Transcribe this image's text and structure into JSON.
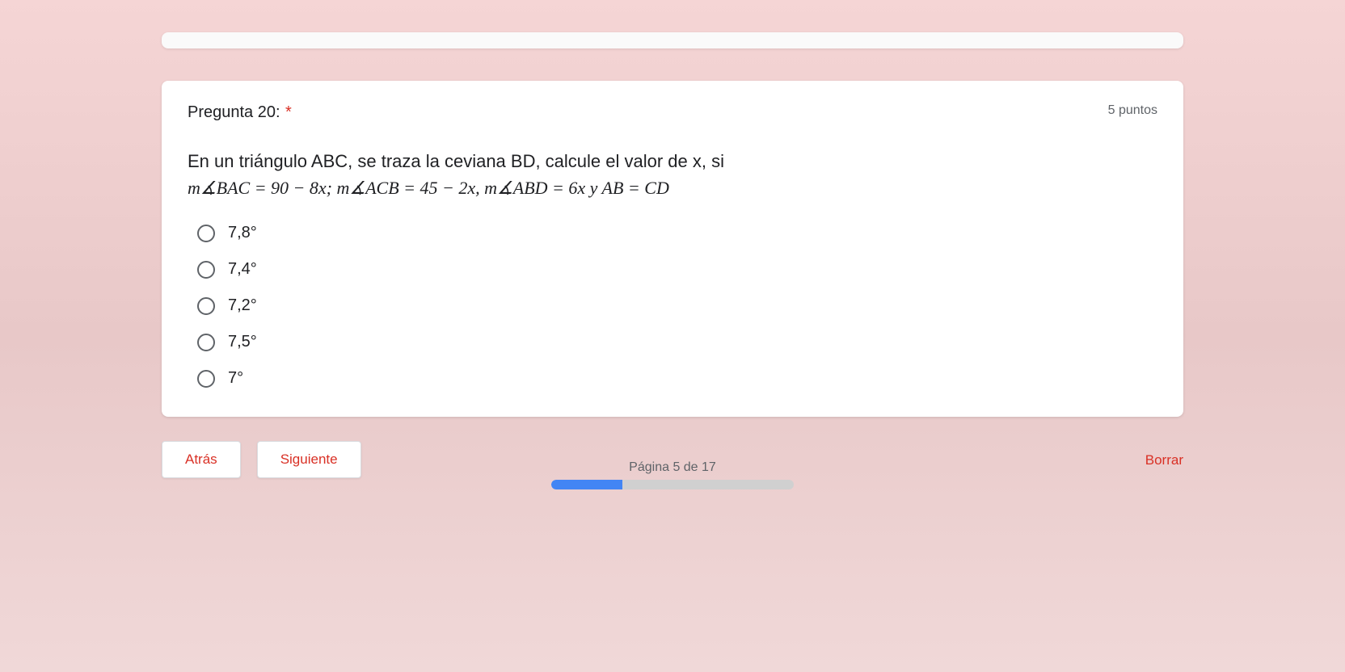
{
  "question": {
    "label": "Pregunta 20:",
    "required_mark": "*",
    "points": "5 puntos",
    "text_line1": "En un triángulo ABC, se traza la ceviana BD, calcule el valor de x, si",
    "text_line2_html": "m∡BAC = 90 − 8x; m∡ACB = 45 − 2x, m∡ABD = 6x y AB = CD",
    "options": [
      "7,8°",
      "7,4°",
      "7,2°",
      "7,5°",
      "7°"
    ]
  },
  "nav": {
    "back": "Atrás",
    "next": "Siguiente",
    "clear": "Borrar"
  },
  "progress": {
    "page_label": "Página 5 de 17",
    "current": 5,
    "total": 17,
    "fill_percent": 29.4
  },
  "colors": {
    "background_top": "#f5d5d5",
    "card_bg": "#ffffff",
    "text_primary": "#202124",
    "text_secondary": "#5f6368",
    "accent_red": "#d93025",
    "progress_fill": "#4285f4",
    "progress_bg": "#d0d0d0",
    "radio_border": "#5f6368"
  }
}
